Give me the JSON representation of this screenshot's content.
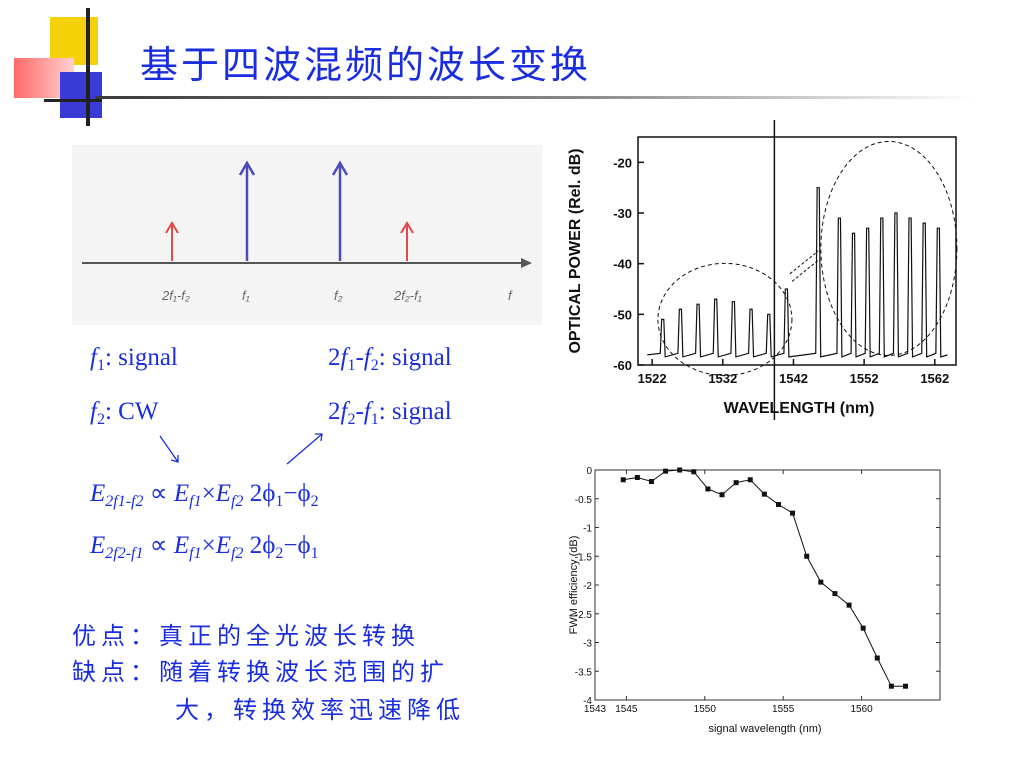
{
  "title": "基于四波混频的波长变换",
  "spectrum_diagram": {
    "labels": [
      "2f₁-f₂",
      "f₁",
      "f₂",
      "2f₂-f₁",
      "f"
    ]
  },
  "equations": {
    "f1_label": "f",
    "f1_sub": "1",
    "f1_text": ": signal",
    "f2_label": "f",
    "f2_sub": "2",
    "f2_text": ": CW",
    "idler1_pre": "2",
    "idler1_f": "f",
    "idler1_s1": "1",
    "idler1_mid": "-",
    "idler1_f2": "f",
    "idler1_s2": "2",
    "idler1_text": ": signal",
    "idler2_pre": "2",
    "idler2_f": "f",
    "idler2_s1": "2",
    "idler2_mid": "-",
    "idler2_f2": "f",
    "idler2_s2": "1",
    "idler2_text": ": signal",
    "eq1": {
      "E": "E",
      "sub": "2f1-f2",
      "prop": " ∝ ",
      "Ea": "E",
      "Ea_sub": "f1",
      "times": "×",
      "Eb": "E",
      "Eb_sub": "f2",
      "phase": "  2ϕ",
      "p1": "1",
      "minus": "−ϕ",
      "p2": "2"
    },
    "eq2": {
      "E": "E",
      "sub": "2f2-f1",
      "prop": " ∝ ",
      "Ea": "E",
      "Ea_sub": "f1",
      "times": "×",
      "Eb": "E",
      "Eb_sub": "f2",
      "phase": "  2ϕ",
      "p1": "2",
      "minus": "−ϕ",
      "p2": "1"
    }
  },
  "pros_cons": {
    "pros_label": "优点：",
    "pros_text": "真正的全光波长转换",
    "cons_label": "缺点：",
    "cons_text_1": "随着转换波长范围的扩",
    "cons_text_2": "大，转换效率迅速降低"
  },
  "chart_data": [
    {
      "type": "line",
      "title": "",
      "xlabel": "WAVELENGTH (nm)",
      "ylabel": "OPTICAL POWER (Rel. dB)",
      "xlim": [
        1520,
        1565
      ],
      "ylim": [
        -60,
        -15
      ],
      "x_ticks": [
        "1522",
        "1532",
        "1542",
        "1552",
        "1562"
      ],
      "y_ticks": [
        "-20",
        "-30",
        "-40",
        "-50",
        "-60"
      ],
      "peaks_left": [
        {
          "x": 1523.5,
          "y": -51
        },
        {
          "x": 1526,
          "y": -49
        },
        {
          "x": 1528.5,
          "y": -48
        },
        {
          "x": 1531,
          "y": -47
        },
        {
          "x": 1533.5,
          "y": -47.5
        },
        {
          "x": 1536,
          "y": -49
        },
        {
          "x": 1538.5,
          "y": -50
        },
        {
          "x": 1541,
          "y": -45
        }
      ],
      "pump_peak": {
        "x": 1545.5,
        "y": -25
      },
      "peaks_right": [
        {
          "x": 1548.5,
          "y": -31
        },
        {
          "x": 1550.5,
          "y": -34
        },
        {
          "x": 1552.5,
          "y": -33
        },
        {
          "x": 1554.5,
          "y": -31
        },
        {
          "x": 1556.5,
          "y": -30
        },
        {
          "x": 1558.5,
          "y": -31
        },
        {
          "x": 1560.5,
          "y": -32
        },
        {
          "x": 1562.5,
          "y": -33
        }
      ],
      "noise_floor": -58
    },
    {
      "type": "line",
      "title": "",
      "xlabel": "signal wavelength (nm)",
      "ylabel": "FWM efficiency (dB)",
      "xlim": [
        1543,
        1565
      ],
      "ylim": [
        -4,
        0
      ],
      "x_ticks": [
        "1543",
        "1545",
        "1550",
        "1555",
        "1560"
      ],
      "y_ticks": [
        "0",
        "-0.5",
        "-1",
        "-1.5",
        "-2",
        "-2.5",
        "-3",
        "-3.5",
        "-4"
      ],
      "series": [
        {
          "x": [
            1544.8,
            1545.7,
            1546.6,
            1547.5,
            1548.4,
            1549.3,
            1550.2,
            1551.1,
            1552.0,
            1552.9,
            1553.8,
            1554.7,
            1555.6,
            1556.5,
            1557.4,
            1558.3,
            1559.2,
            1560.1,
            1561.0,
            1561.9,
            1562.8
          ],
          "y": [
            -0.17,
            -0.13,
            -0.2,
            -0.02,
            0.0,
            -0.03,
            -0.33,
            -0.43,
            -0.22,
            -0.17,
            -0.42,
            -0.6,
            -0.75,
            -1.5,
            -1.95,
            -2.15,
            -2.35,
            -2.75,
            -3.27,
            -3.76,
            -3.76
          ]
        }
      ]
    }
  ]
}
